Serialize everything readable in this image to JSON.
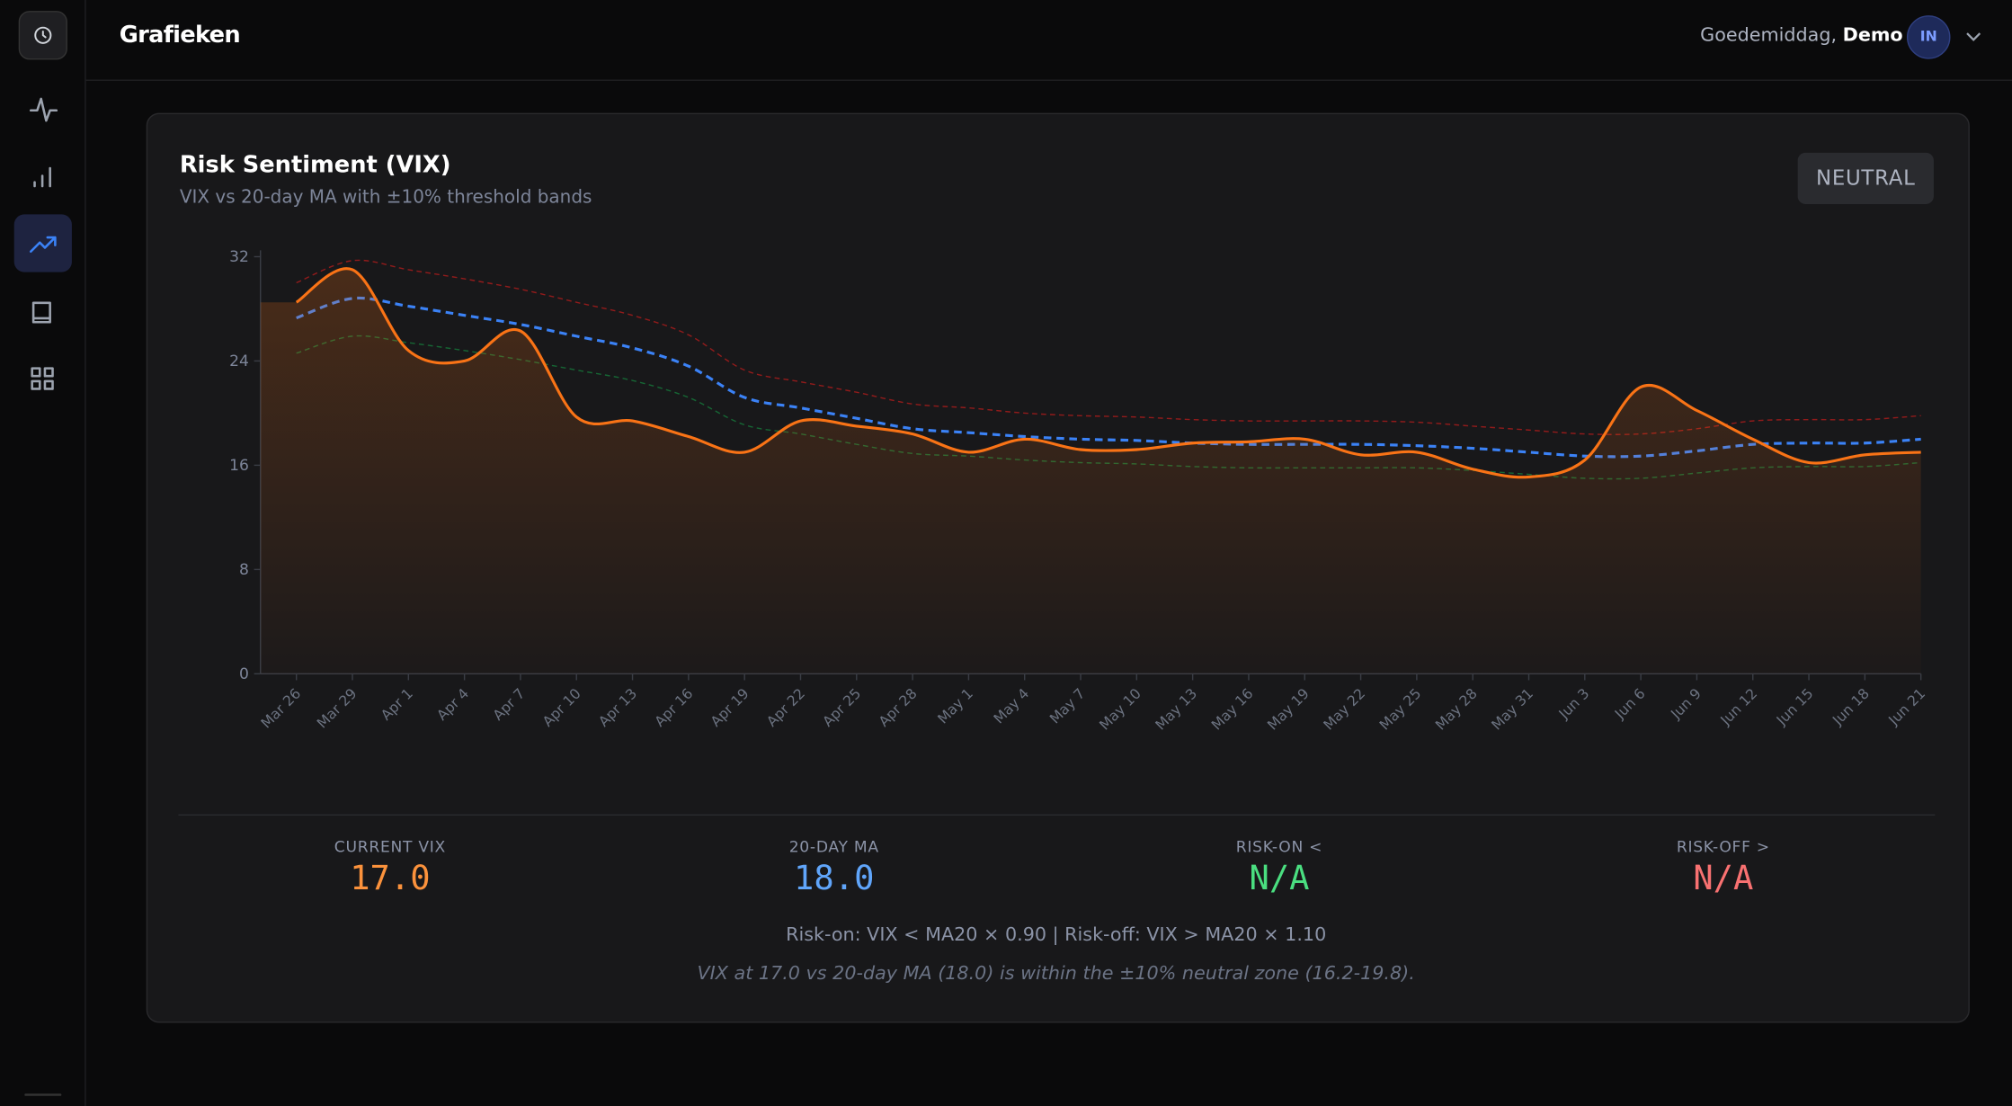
{
  "header": {
    "title": "Grafieken",
    "greeting": "Goedemiddag,",
    "user": "Demo",
    "avatar": "IN"
  },
  "card": {
    "title": "Risk Sentiment (VIX)",
    "subtitle": "VIX vs 20-day MA with ±10% threshold bands",
    "badge": "NEUTRAL"
  },
  "chart_data": {
    "type": "line",
    "categories": [
      "Mar 26",
      "Mar 29",
      "Apr 1",
      "Apr 4",
      "Apr 7",
      "Apr 10",
      "Apr 13",
      "Apr 16",
      "Apr 19",
      "Apr 22",
      "Apr 25",
      "Apr 28",
      "May 1",
      "May 4",
      "May 7",
      "May 10",
      "May 13",
      "May 16",
      "May 19",
      "May 22",
      "May 25",
      "May 28",
      "May 31",
      "Jun 3",
      "Jun 6",
      "Jun 9",
      "Jun 12",
      "Jun 15",
      "Jun 18",
      "Jun 21"
    ],
    "series": [
      {
        "color": "#b91c1c",
        "line_style": "dashed-thin",
        "values": [
          30.0,
          31.7,
          31.0,
          30.3,
          29.5,
          28.5,
          27.5,
          26.0,
          23.3,
          22.4,
          21.6,
          20.7,
          20.4,
          20.0,
          19.8,
          19.7,
          19.5,
          19.4,
          19.4,
          19.4,
          19.3,
          19.0,
          18.7,
          18.4,
          18.4,
          18.8,
          19.4,
          19.5,
          19.5,
          19.8
        ]
      },
      {
        "color": "#15803d",
        "line_style": "dashed-thin",
        "values": [
          24.6,
          25.9,
          25.4,
          24.8,
          24.1,
          23.3,
          22.5,
          21.2,
          19.1,
          18.4,
          17.6,
          16.9,
          16.7,
          16.4,
          16.2,
          16.1,
          15.9,
          15.8,
          15.8,
          15.8,
          15.8,
          15.6,
          15.3,
          15.0,
          15.0,
          15.4,
          15.8,
          15.9,
          15.9,
          16.2
        ]
      },
      {
        "color": "#3b82f6",
        "line_style": "dashed",
        "values": [
          27.3,
          28.8,
          28.2,
          27.5,
          26.8,
          25.9,
          25.0,
          23.6,
          21.2,
          20.4,
          19.6,
          18.8,
          18.5,
          18.2,
          18.0,
          17.9,
          17.7,
          17.6,
          17.6,
          17.6,
          17.5,
          17.3,
          17.0,
          16.7,
          16.7,
          17.1,
          17.6,
          17.7,
          17.7,
          18.0
        ]
      },
      {
        "color": "#f97316",
        "line_style": "solid",
        "area": true,
        "values": [
          28.5,
          31.0,
          24.8,
          24.0,
          26.3,
          19.7,
          19.4,
          18.2,
          17.0,
          19.4,
          19.0,
          18.4,
          17.0,
          18.0,
          17.2,
          17.2,
          17.7,
          17.8,
          18.0,
          16.8,
          17.0,
          15.7,
          15.1,
          16.4,
          22.0,
          20.2,
          18.0,
          16.2,
          16.8,
          17.0
        ]
      }
    ],
    "ylim": [
      0,
      32
    ],
    "yticks": [
      0,
      8,
      16,
      24,
      32
    ]
  },
  "stats": [
    {
      "label": "CURRENT VIX",
      "value": "17.0",
      "color": "#fb923c"
    },
    {
      "label": "20-DAY MA",
      "value": "18.0",
      "color": "#60a5fa"
    },
    {
      "label": "RISK-ON <",
      "value": "N/A",
      "color": "#4ade80"
    },
    {
      "label": "RISK-OFF >",
      "value": "N/A",
      "color": "#f87171"
    }
  ],
  "rule_text": "Risk-on: VIX < MA20 × 0.90 | Risk-off: VIX > MA20 × 1.10",
  "summary": "VIX at 17.0 vs 20-day MA (18.0) is within the ±10% neutral zone (16.2-19.8)."
}
